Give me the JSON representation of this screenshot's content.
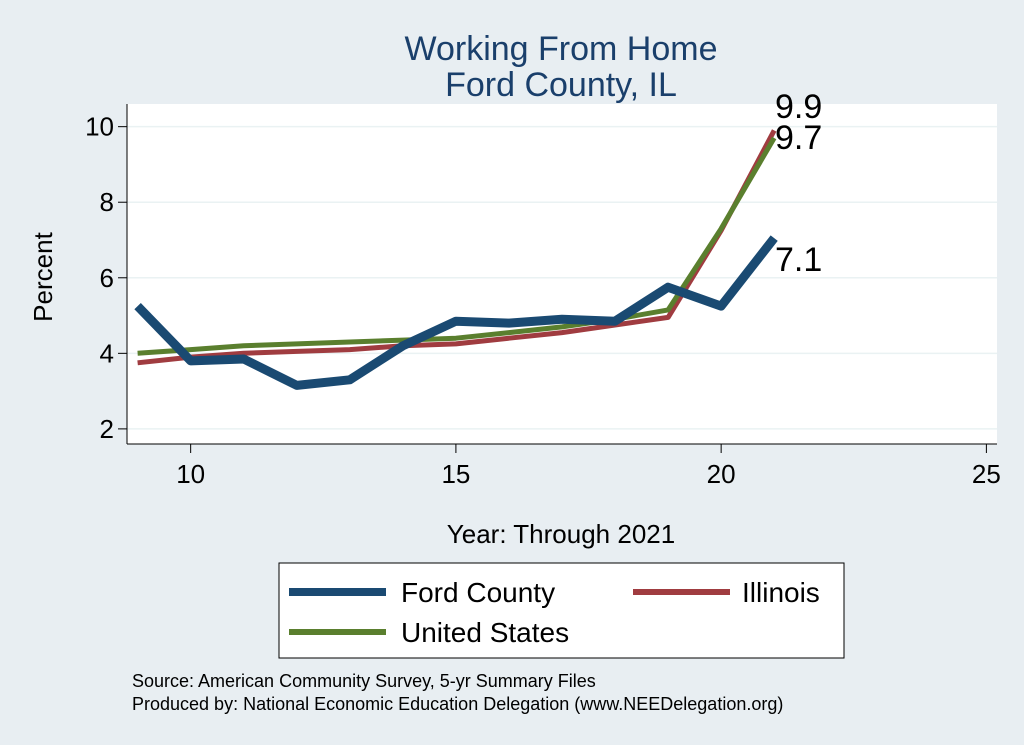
{
  "chart_data": {
    "type": "line",
    "title": "Working From Home",
    "subtitle": "Ford County, IL",
    "xlabel": "Year: Through 2021",
    "ylabel": "Percent",
    "xlim": [
      8.8,
      25.2
    ],
    "ylim": [
      1.6,
      10.6
    ],
    "xticks": [
      10,
      15,
      20,
      25
    ],
    "yticks": [
      2,
      4,
      6,
      8,
      10
    ],
    "grid": true,
    "legend_position": "bottom",
    "x": [
      9,
      10,
      11,
      12,
      13,
      14,
      15,
      16,
      17,
      18,
      19,
      20,
      21
    ],
    "series": [
      {
        "name": "Ford County",
        "color": "#1a4a72",
        "values": [
          5.25,
          3.8,
          3.85,
          3.15,
          3.3,
          4.2,
          4.85,
          4.8,
          4.9,
          4.85,
          5.75,
          5.25,
          7.05
        ]
      },
      {
        "name": "Illinois",
        "color": "#a03c40",
        "values": [
          3.75,
          3.9,
          4.0,
          4.05,
          4.1,
          4.2,
          4.25,
          4.4,
          4.55,
          4.75,
          4.95,
          7.25,
          9.9
        ]
      },
      {
        "name": "United States",
        "color": "#5a7f2e",
        "values": [
          4.0,
          4.1,
          4.2,
          4.25,
          4.3,
          4.35,
          4.4,
          4.55,
          4.7,
          4.9,
          5.15,
          7.3,
          9.7
        ]
      }
    ],
    "end_labels": [
      "9.9",
      "9.7",
      "7.1"
    ],
    "source_lines": [
      "Source: American Community Survey, 5-yr Summary Files",
      "Produced by: National Economic Education Delegation (www.NEEDelegation.org)"
    ]
  }
}
